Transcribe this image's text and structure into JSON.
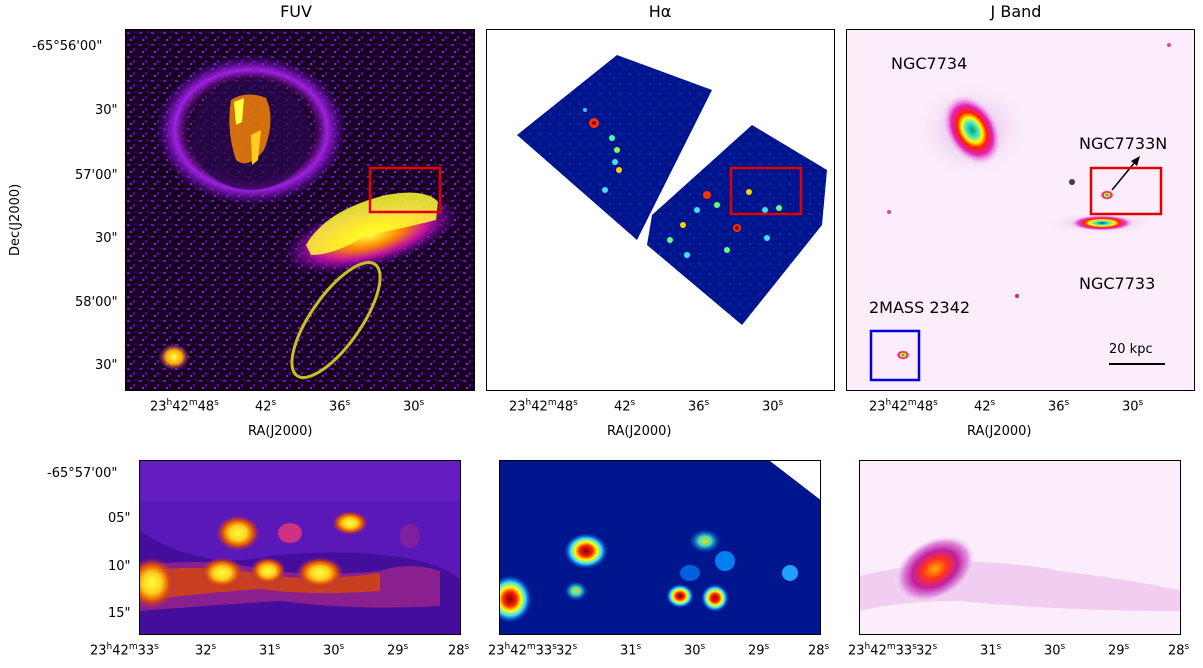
{
  "titles": {
    "fuv": "FUV",
    "halpha": "Hα",
    "jband": "J Band"
  },
  "axes": {
    "ylabel": "Dec(J2000)",
    "xlabel": "RA(J2000)"
  },
  "top_dec_ticks": [
    "-65°56'00\"",
    "30\"",
    "57'00\"",
    "30\"",
    "58'00\"",
    "30\""
  ],
  "top_ra_ticks": [
    {
      "h": "23",
      "m": "42",
      "s": "48"
    },
    {
      "s": "42"
    },
    {
      "s": "36"
    },
    {
      "s": "30"
    }
  ],
  "bottom_dec_ticks": [
    "-65°57'00\"",
    "05\"",
    "10\"",
    "15\""
  ],
  "bottom_ra_ticks": [
    {
      "h": "23",
      "m": "42",
      "s": "33"
    },
    {
      "s": "32"
    },
    {
      "s": "31"
    },
    {
      "s": "30"
    },
    {
      "s": "29"
    },
    {
      "s": "28"
    }
  ],
  "jband_labels": {
    "ngc7734": "NGC7734",
    "ngc7733n": "NGC7733N",
    "ngc7733": "NGC7733",
    "mass2342": "2MASS 2342",
    "scalebar": "20 kpc"
  },
  "colors": {
    "highlight_box": "#e00000",
    "dwarf_box": "#0000dd",
    "ellipse": "#c8c020",
    "fuv_bg": "#1a0020",
    "halpha_bg": "#00148c",
    "jband_bg": "#fbeefa"
  }
}
